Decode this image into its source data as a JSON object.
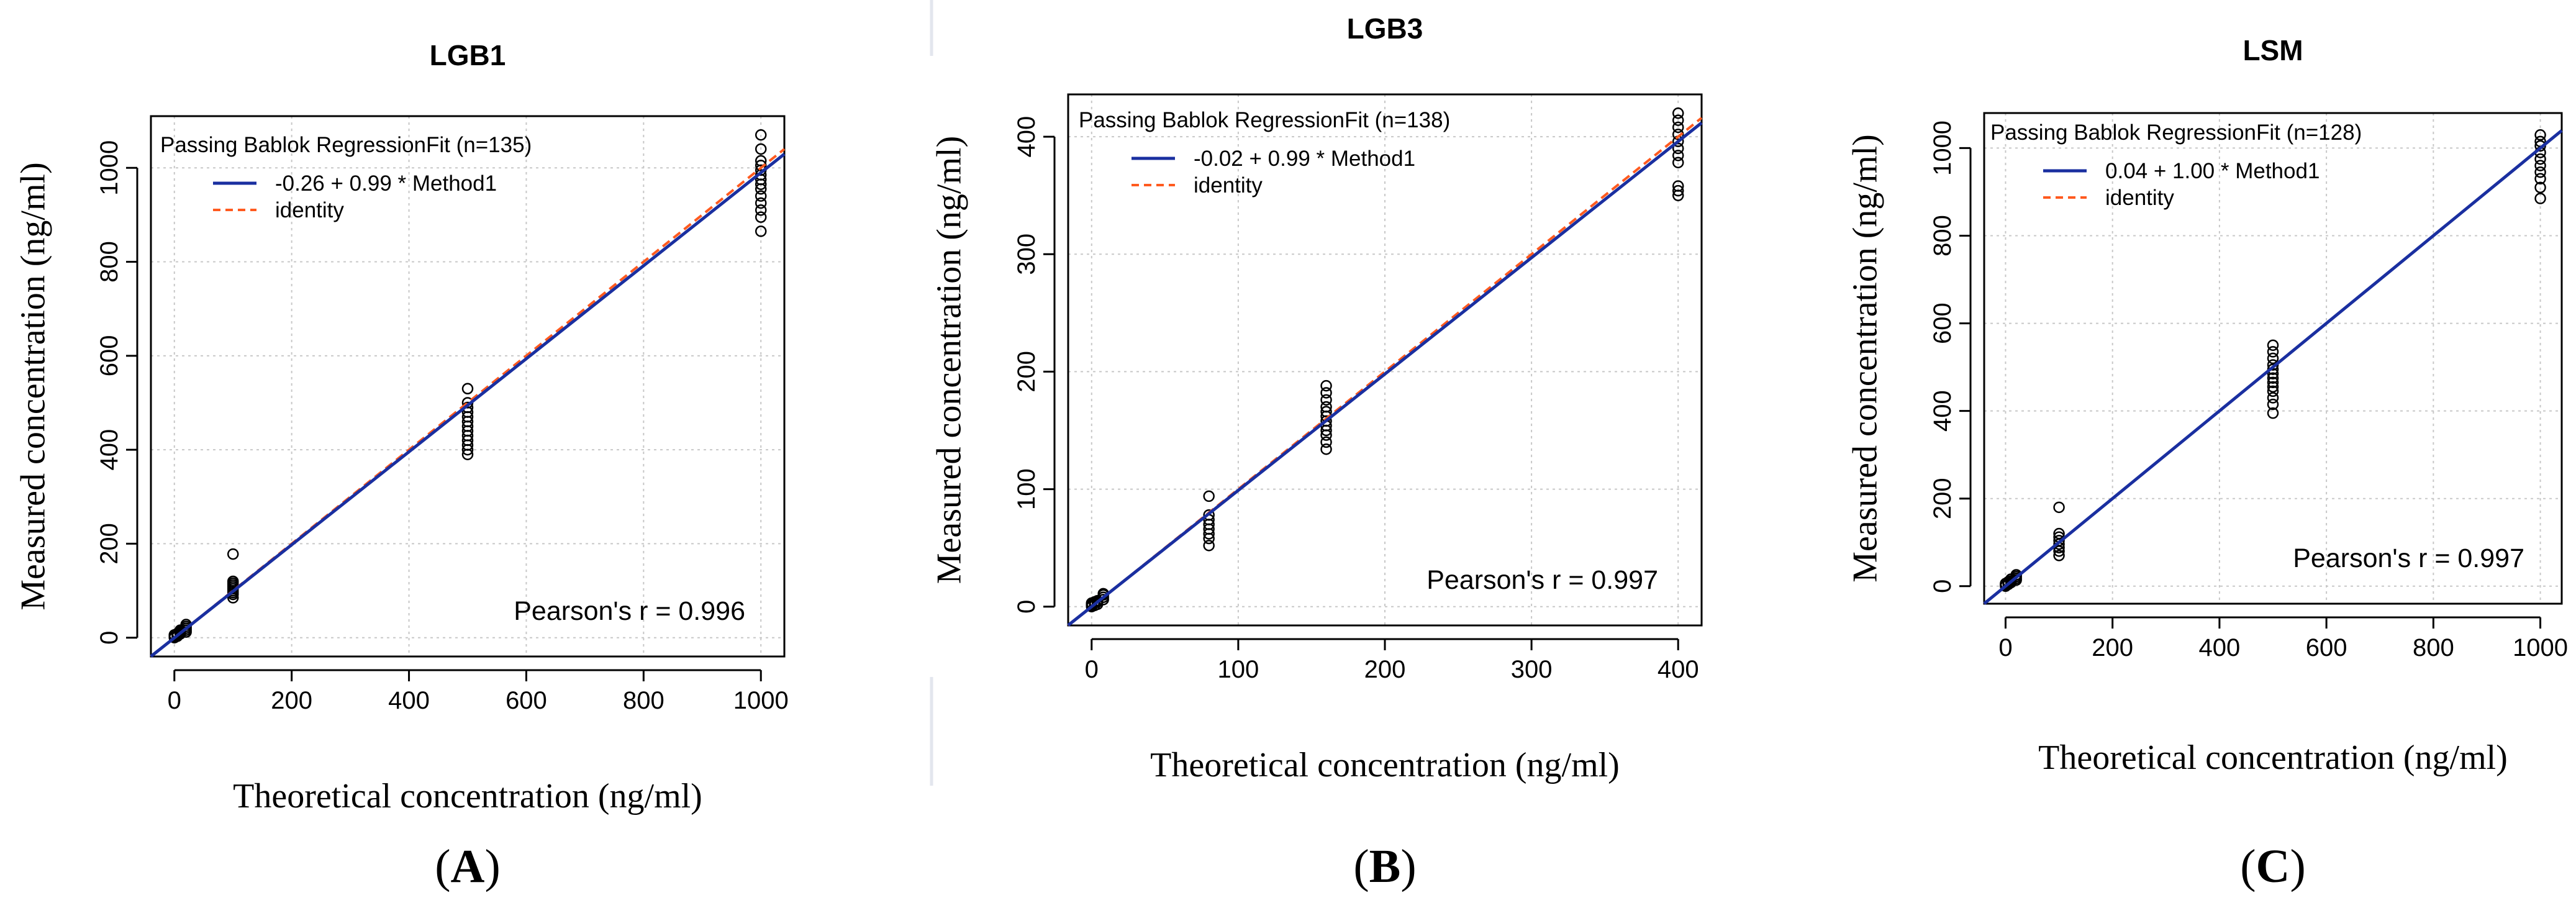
{
  "figure_labels": [
    "A",
    "B",
    "C"
  ],
  "colors": {
    "fit": "#1a2fa0",
    "identity": "#ff5a1f",
    "points": "#000000",
    "grid": "#c8c8c8"
  },
  "chart_data": [
    {
      "type": "scatter",
      "panel": "A",
      "title": "LGB1",
      "xlabel": "Theoretical concentration (ng/ml)",
      "ylabel": "Measured concentration (ng/ml)",
      "xlim": [
        -40,
        1040
      ],
      "ylim": [
        -40,
        1110
      ],
      "xticks": [
        0,
        200,
        400,
        600,
        800,
        1000
      ],
      "yticks": [
        0,
        200,
        400,
        600,
        800,
        1000
      ],
      "grid": true,
      "legend": {
        "title": "Passing Bablok RegressionFit (n=135)",
        "entries": [
          "-0.26 + 0.99 * Method1",
          "identity"
        ]
      },
      "annotation": "Pearson's r = 0.996",
      "fit": {
        "intercept": -0.26,
        "slope": 0.99
      },
      "points": [
        {
          "x": 0,
          "y": [
            0,
            2,
            4,
            6
          ]
        },
        {
          "x": 5,
          "y": [
            3,
            5,
            7,
            9
          ]
        },
        {
          "x": 10,
          "y": [
            8,
            10,
            12,
            14,
            16
          ]
        },
        {
          "x": 20,
          "y": [
            12,
            16,
            20,
            24,
            28
          ]
        },
        {
          "x": 100,
          "y": [
            85,
            92,
            96,
            100,
            104,
            108,
            112,
            116,
            120,
            178
          ]
        },
        {
          "x": 500,
          "y": [
            390,
            400,
            410,
            420,
            430,
            440,
            450,
            460,
            470,
            480,
            490,
            500,
            530
          ]
        },
        {
          "x": 1000,
          "y": [
            865,
            895,
            910,
            925,
            940,
            955,
            965,
            975,
            985,
            995,
            1005,
            1015,
            1040,
            1070
          ]
        }
      ]
    },
    {
      "type": "scatter",
      "panel": "B",
      "title": "LGB3",
      "xlabel": "Theoretical concentration (ng/ml)",
      "ylabel": "Measured concentration (ng/ml)",
      "xlim": [
        -16,
        416
      ],
      "ylim": [
        -16,
        436
      ],
      "xticks": [
        0,
        100,
        200,
        300,
        400
      ],
      "yticks": [
        0,
        100,
        200,
        300,
        400
      ],
      "grid": true,
      "legend": {
        "title": "Passing Bablok RegressionFit (n=138)",
        "entries": [
          "-0.02 + 0.99 * Method1",
          "identity"
        ]
      },
      "annotation": "Pearson's r = 0.997",
      "fit": {
        "intercept": -0.02,
        "slope": 0.99
      },
      "points": [
        {
          "x": 0,
          "y": [
            0,
            1,
            2,
            3
          ]
        },
        {
          "x": 2,
          "y": [
            1,
            3,
            4
          ]
        },
        {
          "x": 4,
          "y": [
            2,
            4,
            5
          ]
        },
        {
          "x": 8,
          "y": [
            6,
            8,
            10,
            11
          ]
        },
        {
          "x": 80,
          "y": [
            52,
            58,
            62,
            66,
            70,
            74,
            78,
            94
          ]
        },
        {
          "x": 160,
          "y": [
            134,
            140,
            146,
            150,
            154,
            158,
            162,
            166,
            170,
            176,
            182,
            188
          ]
        },
        {
          "x": 400,
          "y": [
            350,
            354,
            358,
            378,
            384,
            390,
            396,
            402,
            408,
            414,
            420
          ]
        }
      ]
    },
    {
      "type": "scatter",
      "panel": "C",
      "title": "LSM",
      "xlabel": "Theoretical concentration (ng/ml)",
      "ylabel": "Measured concentration (ng/ml)",
      "xlim": [
        -40,
        1040
      ],
      "ylim": [
        -40,
        1080
      ],
      "xticks": [
        0,
        200,
        400,
        600,
        800,
        1000
      ],
      "yticks": [
        0,
        200,
        400,
        600,
        800,
        1000
      ],
      "grid": true,
      "legend": {
        "title": "Passing Bablok RegressionFit (n=128)",
        "entries": [
          "0.04 + 1.00 * Method1",
          "identity"
        ]
      },
      "annotation": "Pearson's r = 0.997",
      "fit": {
        "intercept": 0.04,
        "slope": 1.0
      },
      "points": [
        {
          "x": 0,
          "y": [
            0,
            2,
            4,
            6
          ]
        },
        {
          "x": 5,
          "y": [
            4,
            6,
            8,
            10
          ]
        },
        {
          "x": 10,
          "y": [
            8,
            12,
            16
          ]
        },
        {
          "x": 20,
          "y": [
            14,
            18,
            22,
            26
          ]
        },
        {
          "x": 100,
          "y": [
            70,
            80,
            88,
            96,
            104,
            112,
            120,
            180
          ]
        },
        {
          "x": 500,
          "y": [
            395,
            415,
            430,
            445,
            455,
            465,
            475,
            485,
            495,
            505,
            520,
            535,
            550
          ]
        },
        {
          "x": 1000,
          "y": [
            885,
            910,
            930,
            945,
            960,
            975,
            990,
            1005,
            1015,
            1030
          ]
        }
      ]
    }
  ]
}
